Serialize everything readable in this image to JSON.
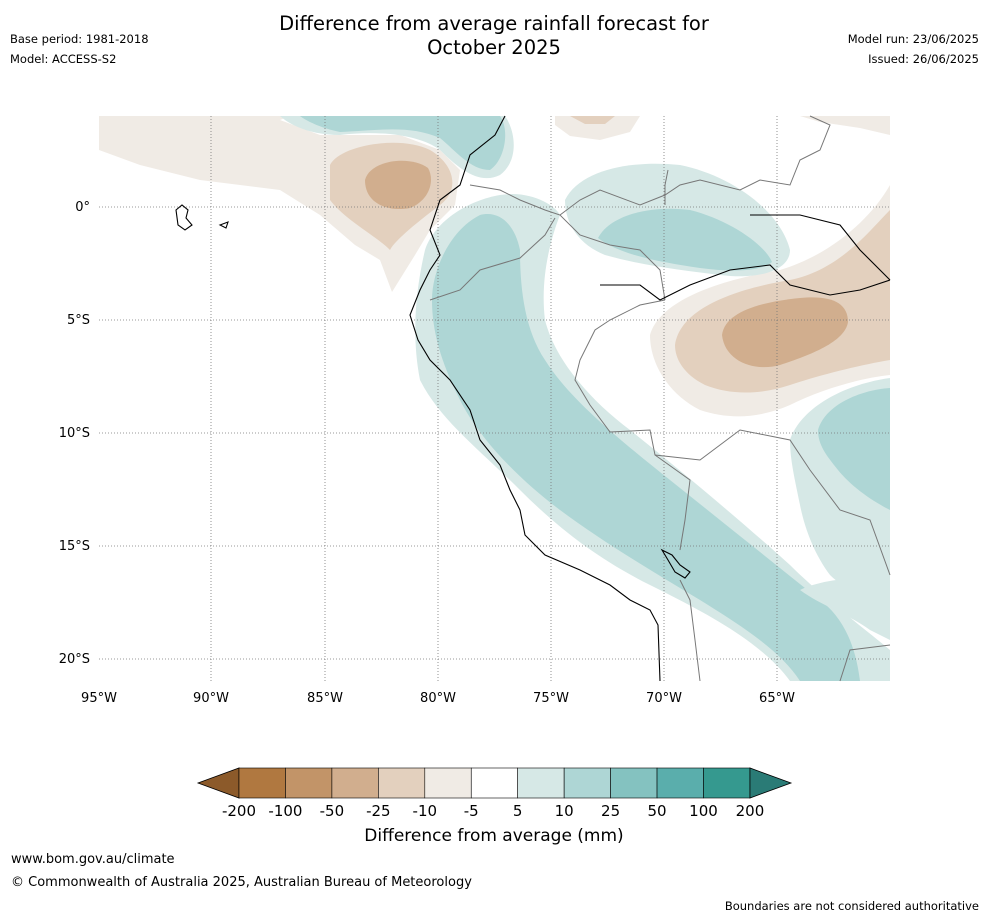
{
  "header": {
    "title_line1": "Difference from average rainfall forecast for",
    "title_line2": "October 2025",
    "base_period": "Base period: 1981-2018",
    "model": "Model: ACCESS-S2",
    "model_run": "Model run: 23/06/2025",
    "issued": "Issued: 26/06/2025"
  },
  "map": {
    "lon_labels": [
      "95°W",
      "90°W",
      "85°W",
      "80°W",
      "75°W",
      "70°W",
      "65°W"
    ],
    "lat_labels": [
      "0°",
      "5°S",
      "10°S",
      "15°S",
      "20°S"
    ],
    "gridlines": "dotted"
  },
  "colorbar": {
    "label": "Difference from average (mm)",
    "ticks": [
      "-200",
      "-100",
      "-50",
      "-25",
      "-10",
      "-5",
      "5",
      "10",
      "25",
      "50",
      "100",
      "200"
    ],
    "colors": [
      "#8c5a2a",
      "#b07840",
      "#c29468",
      "#d1ae8e",
      "#e3d0be",
      "#f0ebe5",
      "#ffffff",
      "#d6e8e6",
      "#aed6d5",
      "#84c2c0",
      "#5aaeac",
      "#35998f",
      "#2a7b76"
    ],
    "extend": "both"
  },
  "footer": {
    "url": "www.bom.gov.au/climate",
    "copyright": "© Commonwealth of Australia 2025, Australian Bureau of Meteorology",
    "disclaimer": "Boundaries are not considered authoritative"
  }
}
